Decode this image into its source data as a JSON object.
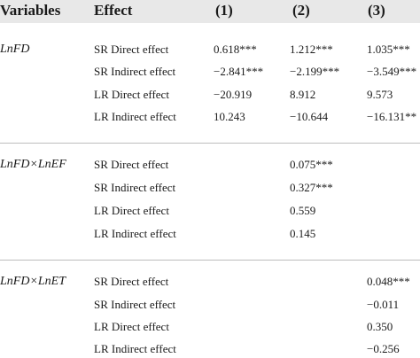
{
  "header": {
    "variables": "Variables",
    "effect": "Effect",
    "col1": "(1)",
    "col2": "(2)",
    "col3": "(3)"
  },
  "groups": [
    {
      "variable": "LnFD",
      "rows": [
        {
          "effect": "SR Direct effect",
          "c1": "0.618***",
          "c2": "1.212***",
          "c3": "1.035***"
        },
        {
          "effect": "SR Indirect effect",
          "c1": "−2.841***",
          "c2": "−2.199***",
          "c3": "−3.549***"
        },
        {
          "effect": "LR Direct effect",
          "c1": "−20.919",
          "c2": "8.912",
          "c3": "9.573"
        },
        {
          "effect": "LR Indirect effect",
          "c1": "10.243",
          "c2": "−10.644",
          "c3": "−16.131**"
        }
      ]
    },
    {
      "variable": "LnFD×LnEF",
      "rows": [
        {
          "effect": "SR Direct effect",
          "c1": "",
          "c2": "0.075***",
          "c3": ""
        },
        {
          "effect": "SR Indirect effect",
          "c1": "",
          "c2": "0.327***",
          "c3": ""
        },
        {
          "effect": "LR Direct effect",
          "c1": "",
          "c2": "0.559",
          "c3": ""
        },
        {
          "effect": "LR Indirect effect",
          "c1": "",
          "c2": "0.145",
          "c3": ""
        }
      ]
    },
    {
      "variable": "LnFD×LnET",
      "rows": [
        {
          "effect": "SR Direct effect",
          "c1": "",
          "c2": "",
          "c3": "0.048***"
        },
        {
          "effect": "SR Indirect effect",
          "c1": "",
          "c2": "",
          "c3": "−0.011"
        },
        {
          "effect": "LR Direct effect",
          "c1": "",
          "c2": "",
          "c3": "0.350"
        },
        {
          "effect": "LR Indirect effect",
          "c1": "",
          "c2": "",
          "c3": "−0.256"
        }
      ]
    }
  ]
}
